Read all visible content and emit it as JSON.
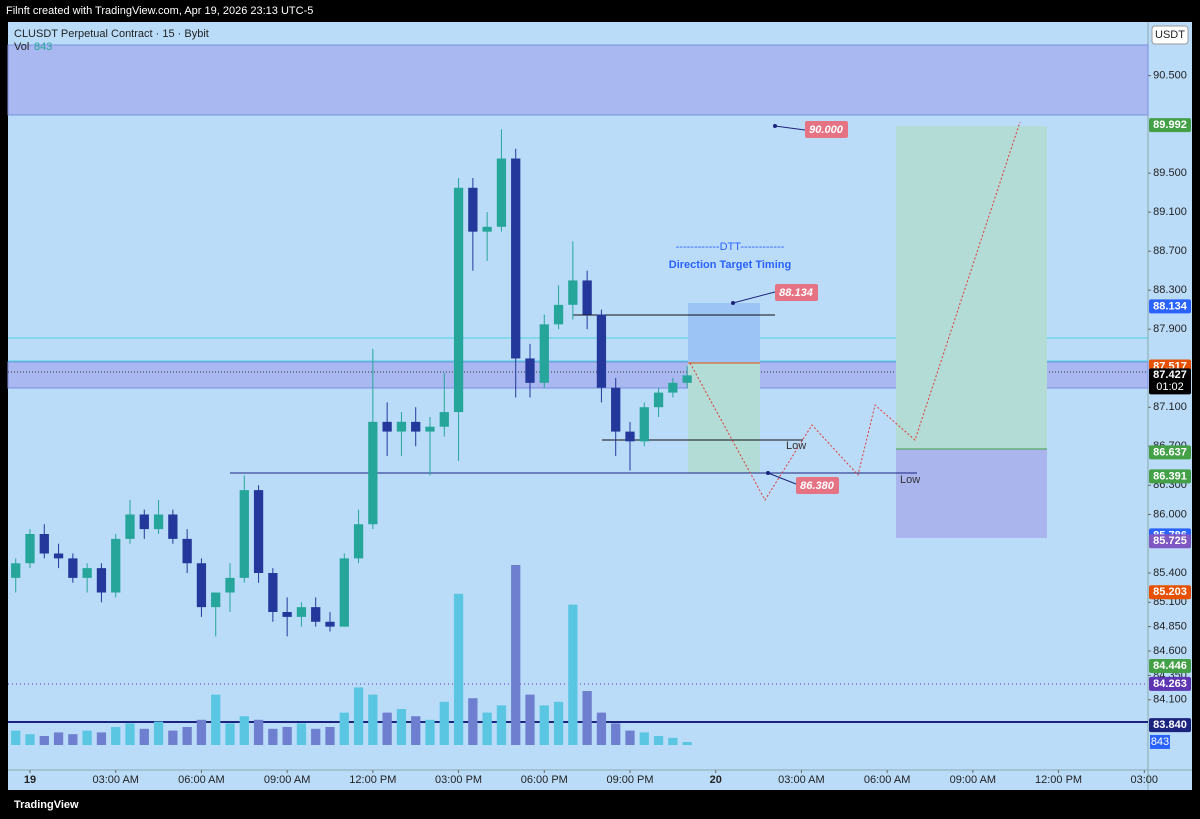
{
  "chart_data": {
    "type": "candlestick",
    "header": "Filnft created with TradingView.com, Apr 19, 2026 23:13 UTC-5",
    "title": "CLUSDT Perpetual Contract · 15 · Bybit",
    "volume_label": "Vol",
    "currency": "USDT",
    "countdown": "01:02",
    "brand": "TradingView",
    "up_color": "#26a69a",
    "down_color": "#23389a",
    "volume_up_color": "#5bc6e2",
    "volume_down_color": "#6d7fce",
    "x": [
      -0.5,
      0,
      0.5,
      1,
      1.5,
      2,
      2.5,
      3,
      3.5,
      4,
      4.5,
      5,
      5.5,
      6,
      6.5,
      7,
      7.5,
      8,
      8.5,
      9,
      9.5,
      10,
      10.5,
      11,
      11.5,
      12,
      12.5,
      13,
      13.5,
      14,
      14.5,
      15,
      15.5,
      16,
      16.5,
      17,
      17.5,
      18,
      18.5,
      19,
      19.5,
      20,
      20.5,
      21,
      21.5,
      22,
      22.5,
      23
    ],
    "candles": [
      [
        85.35,
        85.55,
        85.2,
        85.5
      ],
      [
        85.5,
        85.85,
        85.45,
        85.8
      ],
      [
        85.8,
        85.9,
        85.55,
        85.6
      ],
      [
        85.6,
        85.7,
        85.45,
        85.55
      ],
      [
        85.55,
        85.6,
        85.3,
        85.35
      ],
      [
        85.35,
        85.5,
        85.2,
        85.45
      ],
      [
        85.45,
        85.5,
        85.1,
        85.2
      ],
      [
        85.2,
        85.8,
        85.15,
        85.75
      ],
      [
        85.75,
        86.15,
        85.7,
        86.0
      ],
      [
        86.0,
        86.05,
        85.75,
        85.85
      ],
      [
        85.85,
        86.15,
        85.8,
        86.0
      ],
      [
        86.0,
        86.05,
        85.7,
        85.75
      ],
      [
        85.75,
        85.85,
        85.4,
        85.5
      ],
      [
        85.5,
        85.55,
        84.95,
        85.05
      ],
      [
        85.05,
        85.2,
        84.75,
        85.2
      ],
      [
        85.2,
        85.5,
        85.0,
        85.35
      ],
      [
        85.35,
        86.4,
        85.3,
        86.25
      ],
      [
        86.25,
        86.3,
        85.3,
        85.4
      ],
      [
        85.4,
        85.45,
        84.9,
        85.0
      ],
      [
        85.0,
        85.15,
        84.75,
        84.95
      ],
      [
        84.95,
        85.1,
        84.85,
        85.05
      ],
      [
        85.05,
        85.15,
        84.85,
        84.9
      ],
      [
        84.9,
        85.0,
        84.8,
        84.85
      ],
      [
        84.85,
        85.6,
        84.85,
        85.55
      ],
      [
        85.55,
        86.05,
        85.5,
        85.9
      ],
      [
        85.9,
        87.7,
        85.85,
        86.95
      ],
      [
        86.95,
        87.15,
        86.6,
        86.85
      ],
      [
        86.85,
        87.05,
        86.6,
        86.95
      ],
      [
        86.95,
        87.1,
        86.7,
        86.85
      ],
      [
        86.85,
        87.0,
        86.4,
        86.9
      ],
      [
        86.9,
        87.45,
        86.8,
        87.05
      ],
      [
        87.05,
        89.45,
        86.55,
        89.35
      ],
      [
        89.35,
        89.45,
        88.5,
        88.9
      ],
      [
        88.9,
        89.1,
        88.6,
        88.95
      ],
      [
        88.95,
        89.95,
        88.9,
        89.65
      ],
      [
        89.65,
        89.75,
        87.2,
        87.6
      ],
      [
        87.6,
        87.75,
        87.2,
        87.35
      ],
      [
        87.35,
        88.05,
        87.3,
        87.95
      ],
      [
        87.95,
        88.35,
        87.9,
        88.15
      ],
      [
        88.15,
        88.8,
        88.0,
        88.4
      ],
      [
        88.4,
        88.5,
        87.9,
        88.05
      ],
      [
        88.05,
        88.1,
        87.15,
        87.3
      ],
      [
        87.3,
        87.4,
        86.6,
        86.85
      ],
      [
        86.85,
        86.95,
        86.45,
        86.75
      ],
      [
        86.75,
        87.15,
        86.7,
        87.1
      ],
      [
        87.1,
        87.3,
        87.0,
        87.25
      ],
      [
        87.25,
        87.4,
        87.2,
        87.35
      ],
      [
        87.35,
        87.52,
        87.3,
        87.427
      ]
    ],
    "volume": [
      4000,
      3000,
      2500,
      3500,
      3000,
      4000,
      3500,
      5000,
      6000,
      4500,
      6500,
      4000,
      5000,
      7000,
      14000,
      6000,
      8000,
      7000,
      4500,
      5000,
      6000,
      4500,
      5000,
      9000,
      16000,
      14000,
      9000,
      10000,
      8000,
      7000,
      12000,
      42000,
      13000,
      9000,
      11000,
      50000,
      14000,
      11000,
      12000,
      39000,
      15000,
      9000,
      6000,
      4000,
      3500,
      2500,
      2000,
      843
    ],
    "volume_ylim": [
      0,
      50000
    ],
    "xlim": [
      -0.77,
      39.13
    ],
    "xticks": [
      {
        "value": 0,
        "label": "19"
      },
      {
        "value": 3,
        "label": "03:00 AM"
      },
      {
        "value": 6,
        "label": "06:00 AM"
      },
      {
        "value": 9,
        "label": "09:00 AM"
      },
      {
        "value": 12,
        "label": "12:00 PM"
      },
      {
        "value": 15,
        "label": "03:00 PM"
      },
      {
        "value": 18,
        "label": "06:00 PM"
      },
      {
        "value": 21,
        "label": "09:00 PM"
      },
      {
        "value": 24,
        "label": "20"
      },
      {
        "value": 27,
        "label": "03:00 AM"
      },
      {
        "value": 30,
        "label": "06:00 AM"
      },
      {
        "value": 33,
        "label": "09:00 AM"
      },
      {
        "value": 36,
        "label": "12:00 PM"
      },
      {
        "value": 39,
        "label": "03:00"
      }
    ],
    "ylim": [
      83.38,
      91.05
    ],
    "yticks": [
      {
        "value": 90.5,
        "label": "90.500"
      },
      {
        "value": 89.5,
        "label": "89.500"
      },
      {
        "value": 89.1,
        "label": "89.100"
      },
      {
        "value": 88.7,
        "label": "88.700"
      },
      {
        "value": 88.3,
        "label": "88.300"
      },
      {
        "value": 87.9,
        "label": "87.900"
      },
      {
        "value": 87.1,
        "label": "87.100"
      },
      {
        "value": 86.7,
        "label": "86.700"
      },
      {
        "value": 86.3,
        "label": "86.300"
      },
      {
        "value": 86.0,
        "label": "86.000"
      },
      {
        "value": 85.4,
        "label": "85.400"
      },
      {
        "value": 85.1,
        "label": "85.100"
      },
      {
        "value": 84.85,
        "label": "84.850"
      },
      {
        "value": 84.6,
        "label": "84.600"
      },
      {
        "value": 84.35,
        "label": "84.350"
      },
      {
        "value": 84.1,
        "label": "84.100"
      }
    ],
    "price_badges": [
      {
        "value": 89.992,
        "label": "89.992",
        "color": "#43a047"
      },
      {
        "value": 88.134,
        "label": "88.134",
        "color": "#2962ff"
      },
      {
        "value": 87.517,
        "label": "87.517",
        "color": "#e65100"
      },
      {
        "value": 87.427,
        "label": "87.427",
        "color": "#000000"
      },
      {
        "value": 86.637,
        "label": "86.637",
        "color": "#43a047"
      },
      {
        "value": 86.391,
        "label": "86.391",
        "color": "#43a047"
      },
      {
        "value": 85.786,
        "label": "85.786",
        "color": "#2962ff"
      },
      {
        "value": 85.725,
        "label": "85.725",
        "color": "#7e57c2"
      },
      {
        "value": 85.203,
        "label": "85.203",
        "color": "#e65100"
      },
      {
        "value": 84.446,
        "label": "84.446",
        "color": "#43a047"
      },
      {
        "value": 84.263,
        "label": "84.263",
        "color": "#5e35b1"
      },
      {
        "value": 83.84,
        "label": "83.840",
        "color": "#1a237e"
      }
    ],
    "annotations": [
      "------------DTT------------",
      "Direction Target Timing",
      "90.000",
      "88.134",
      "86.380",
      "Low",
      "Low"
    ]
  }
}
